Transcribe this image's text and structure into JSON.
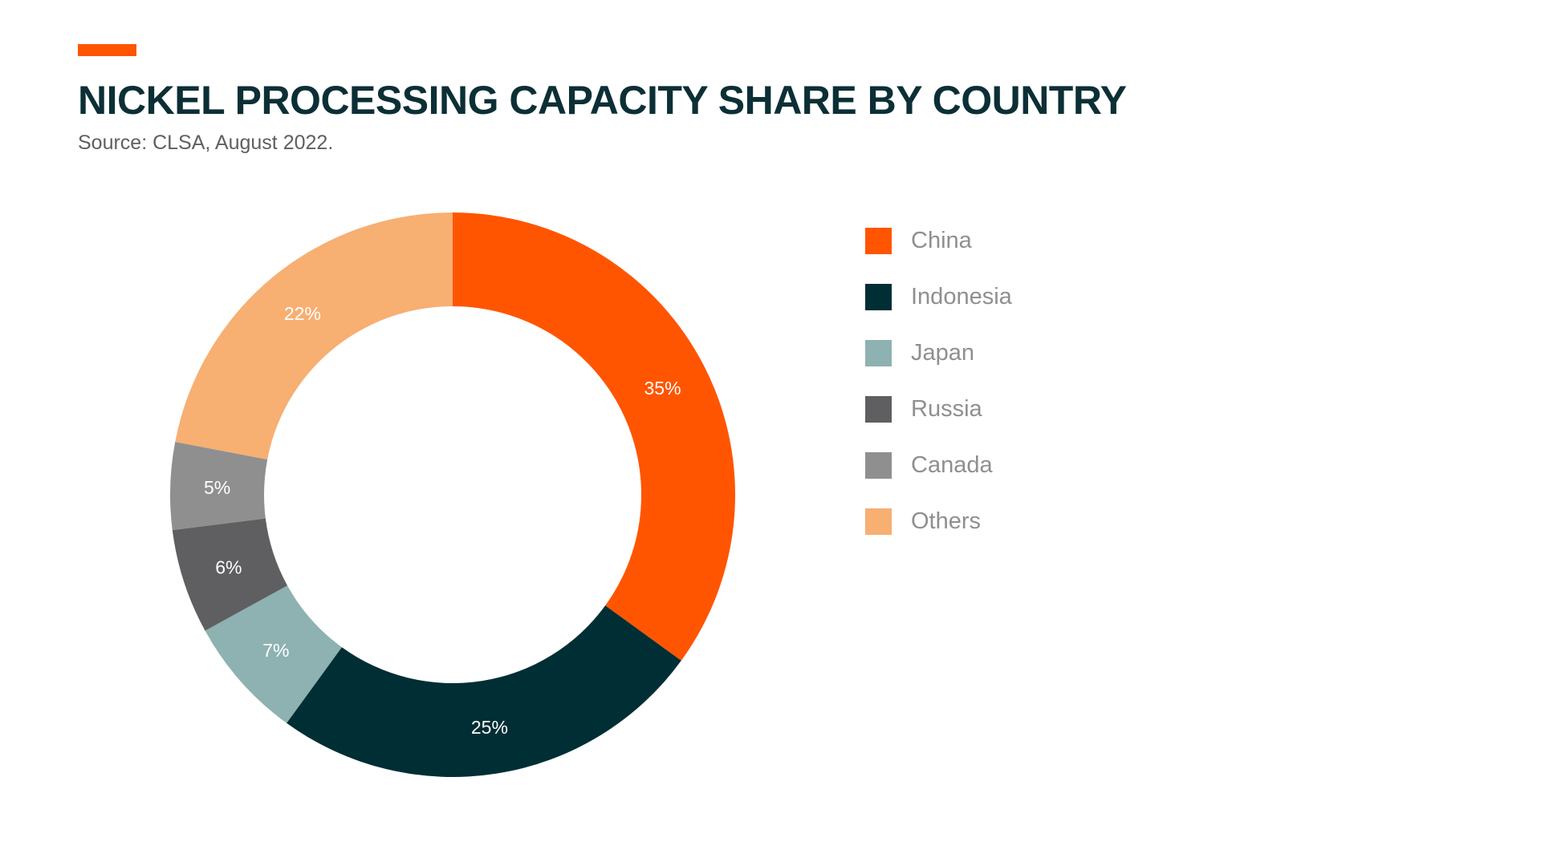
{
  "colors": {
    "accent": "#FF5500",
    "title": "#0C2F36",
    "subtitle": "#5F5F62",
    "legend_text": "#8F8F8F"
  },
  "header": {
    "title": "NICKEL PROCESSING CAPACITY SHARE BY COUNTRY",
    "subtitle": "Source: CLSA, August 2022."
  },
  "chart_data": {
    "type": "pie",
    "title": "NICKEL PROCESSING CAPACITY SHARE BY COUNTRY",
    "subtitle": "Source: CLSA, August 2022.",
    "donut": true,
    "legend_position": "right",
    "categories": [
      "China",
      "Indonesia",
      "Japan",
      "Russia",
      "Canada",
      "Others"
    ],
    "values": [
      35,
      25,
      7,
      6,
      5,
      22
    ],
    "labels": [
      "35%",
      "25%",
      "7%",
      "6%",
      "5%",
      "22%"
    ],
    "colors": [
      "#FF5500",
      "#002E35",
      "#8EB1B1",
      "#5F5F62",
      "#8F8F8F",
      "#F7AF72"
    ]
  }
}
